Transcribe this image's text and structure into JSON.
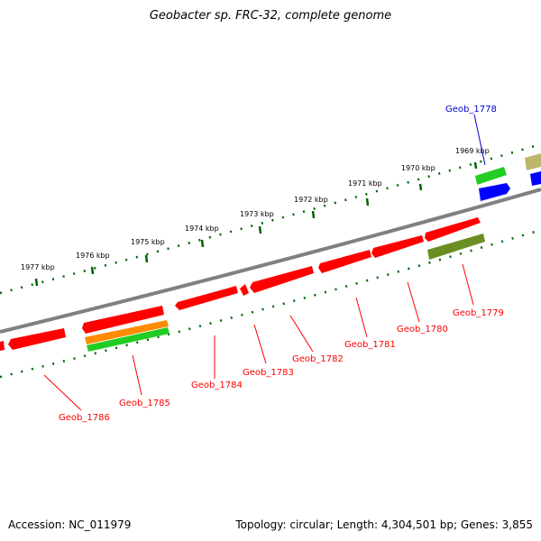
{
  "title": "Geobacter sp. FRC-32, complete genome",
  "footer": {
    "accession": "Accession: NC_011979",
    "summary": "Topology: circular; Length: 4,304,501 bp; Genes: 3,855"
  },
  "colors": {
    "backbone": "#808080",
    "ticks": "#006400",
    "red_gene": "#ff0000",
    "green_gene": "#22cc22",
    "orange_gene": "#ff8c00",
    "olive_gene": "#6b8e23",
    "blue_gene": "#0000ff",
    "khaki_gene": "#bdb76b",
    "label_red": "#ff0000",
    "label_blue": "#0000cc"
  },
  "kbp_labels": [
    "1969 kbp",
    "1970 kbp",
    "1971 kbp",
    "1972 kbp",
    "1973 kbp",
    "1974 kbp",
    "1975 kbp",
    "1976 kbp",
    "1977 kbp"
  ],
  "gene_labels": [
    {
      "text": "Geob_1778",
      "color": "blue"
    },
    {
      "text": "Geob_1779",
      "color": "red"
    },
    {
      "text": "Geob_1780",
      "color": "red"
    },
    {
      "text": "Geob_1781",
      "color": "red"
    },
    {
      "text": "Geob_1782",
      "color": "red"
    },
    {
      "text": "Geob_1783",
      "color": "red"
    },
    {
      "text": "Geob_1784",
      "color": "red"
    },
    {
      "text": "Geob_1785",
      "color": "red"
    },
    {
      "text": "Geob_1786",
      "color": "red"
    }
  ]
}
